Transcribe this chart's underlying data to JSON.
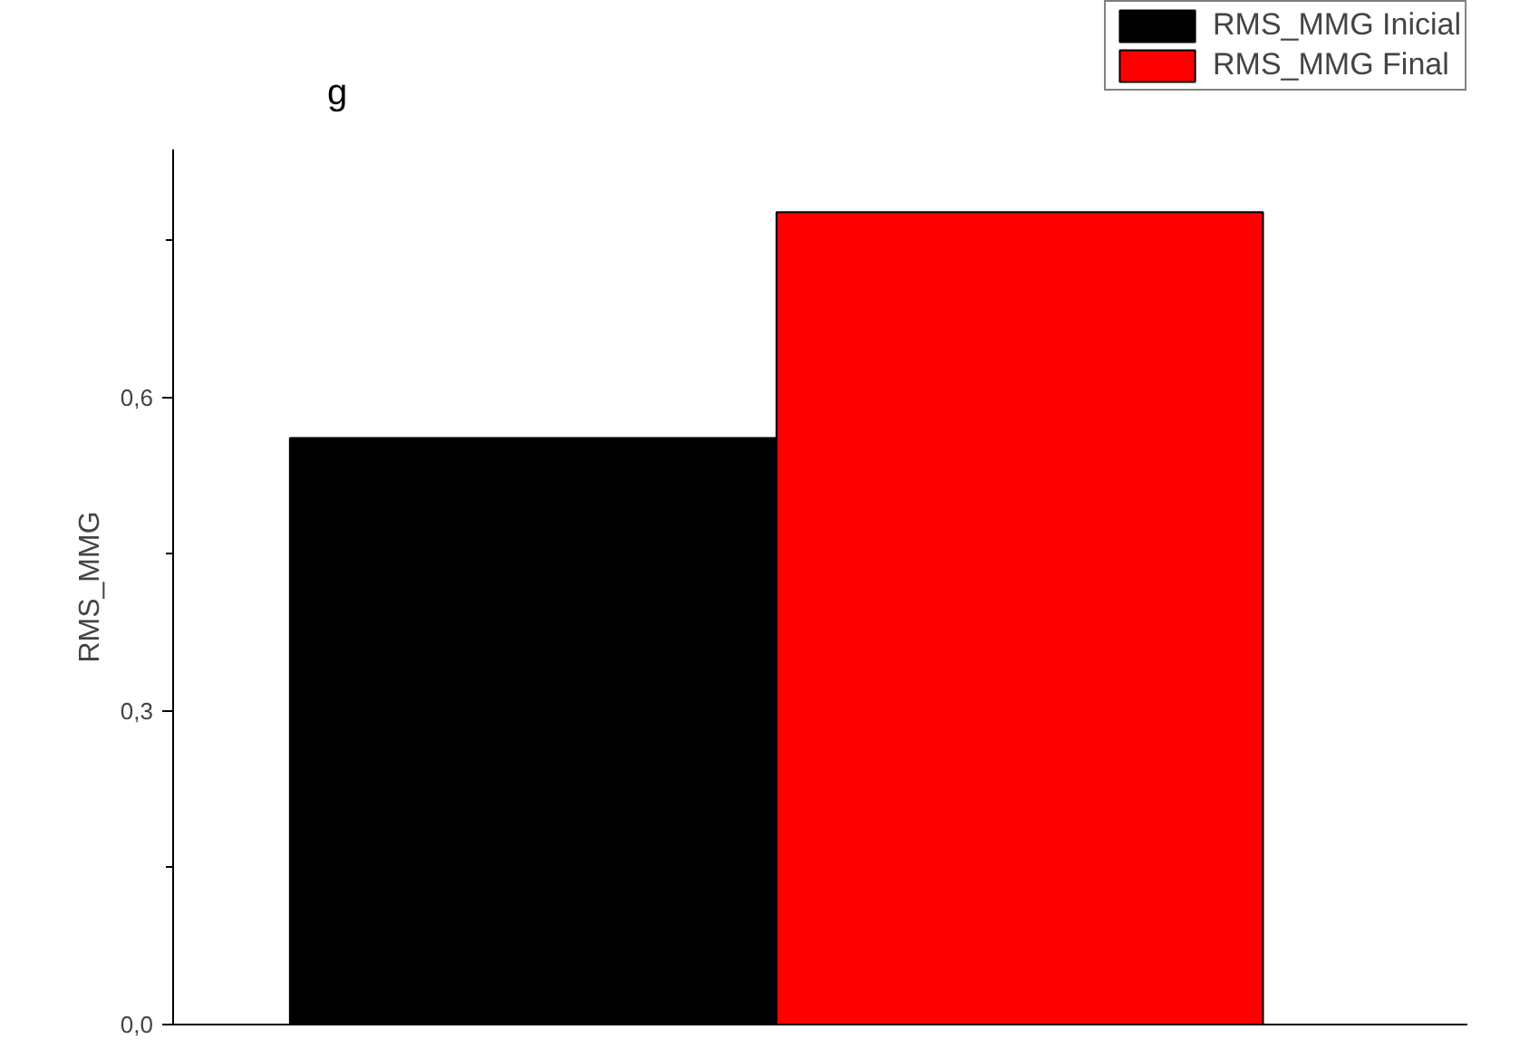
{
  "chart_data": {
    "type": "bar",
    "title": "g",
    "ylabel": "RMS_MMG",
    "categories": [
      null
    ],
    "series": [
      {
        "name": "RMS_MMG Inicial",
        "color": "#000000",
        "values": [
          0.561
        ]
      },
      {
        "name": "RMS_MMG Final",
        "color": "#ff0000",
        "values": [
          0.777
        ]
      }
    ],
    "ylim": [
      0,
      0.837
    ],
    "yticks": [
      {
        "value": 0,
        "label": "0,0"
      },
      {
        "value": 0.3,
        "label": "0,3"
      },
      {
        "value": 0.6,
        "label": "0,6"
      }
    ],
    "grid": false,
    "legend": "top right"
  }
}
